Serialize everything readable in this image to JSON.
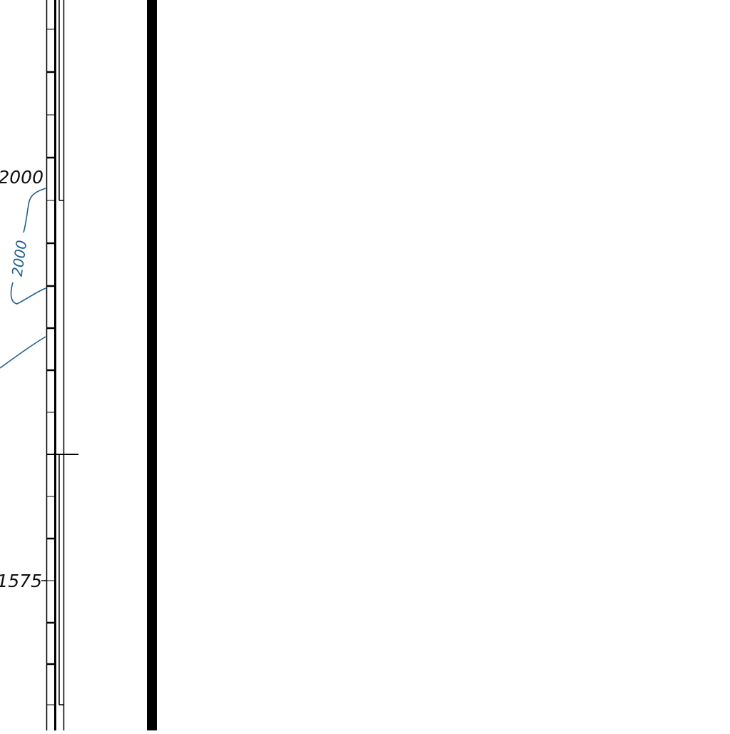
{
  "map": {
    "edge_labels": {
      "upper": "2000",
      "lower": "1575"
    },
    "contour": {
      "label": "2000",
      "color": "#1f5f8f"
    },
    "colors": {
      "neatline": "#000000",
      "contour": "#1f5f8f",
      "background": "#ffffff"
    }
  }
}
